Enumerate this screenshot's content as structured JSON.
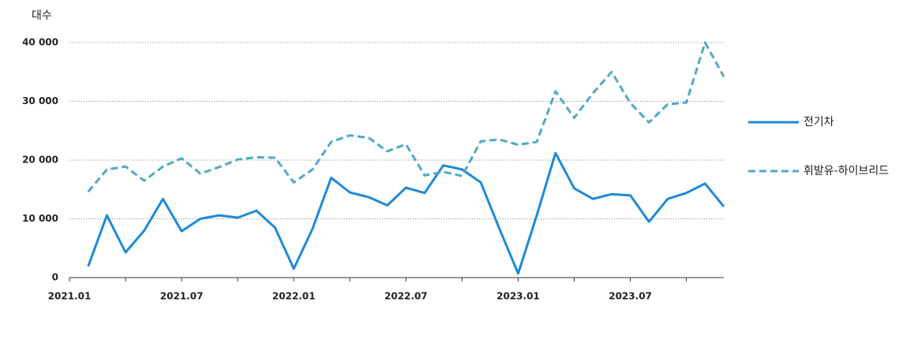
{
  "chart_data": {
    "type": "line",
    "y_label": "대수",
    "categories": [
      "2021.01",
      null,
      null,
      null,
      null,
      null,
      "2021.07",
      null,
      null,
      null,
      null,
      null,
      "2022.01",
      null,
      null,
      null,
      null,
      null,
      "2022.07",
      null,
      null,
      null,
      null,
      null,
      "2023.01",
      null,
      null,
      null,
      null,
      null,
      "2023.07",
      null,
      null,
      null,
      null
    ],
    "series": [
      {
        "name": "전기차",
        "color": "#1e8ad8",
        "dash": false,
        "values": [
          1900,
          10600,
          4300,
          8000,
          13400,
          7900,
          10000,
          10600,
          10200,
          11400,
          8500,
          1500,
          8300,
          17000,
          14500,
          13700,
          12300,
          15300,
          14400,
          19100,
          18400,
          16200,
          8300,
          700,
          10600,
          21200,
          15200,
          13400,
          14200,
          14000,
          9500,
          13400,
          14400,
          16000,
          12100
        ]
      },
      {
        "name": "휘발유-하이브리드",
        "color": "#4faac4",
        "dash": true,
        "values": [
          14600,
          18400,
          18900,
          16500,
          18900,
          20300,
          17700,
          18800,
          20100,
          20500,
          20400,
          16200,
          18400,
          23100,
          24200,
          23800,
          21500,
          22700,
          17400,
          18000,
          17300,
          23200,
          23500,
          22600,
          23100,
          31700,
          27200,
          31400,
          35000,
          29700,
          26400,
          29500,
          29800,
          40000,
          34200
        ]
      }
    ],
    "ylim": [
      0,
      40000
    ],
    "yticks": [
      0,
      {
        "value": 10000,
        "label": "10 000"
      },
      {
        "value": 20000,
        "label": "20 000"
      },
      {
        "value": 30000,
        "label": "30 000"
      },
      {
        "value": 40000,
        "label": "40 000"
      }
    ],
    "grid": true,
    "legend": "right"
  }
}
